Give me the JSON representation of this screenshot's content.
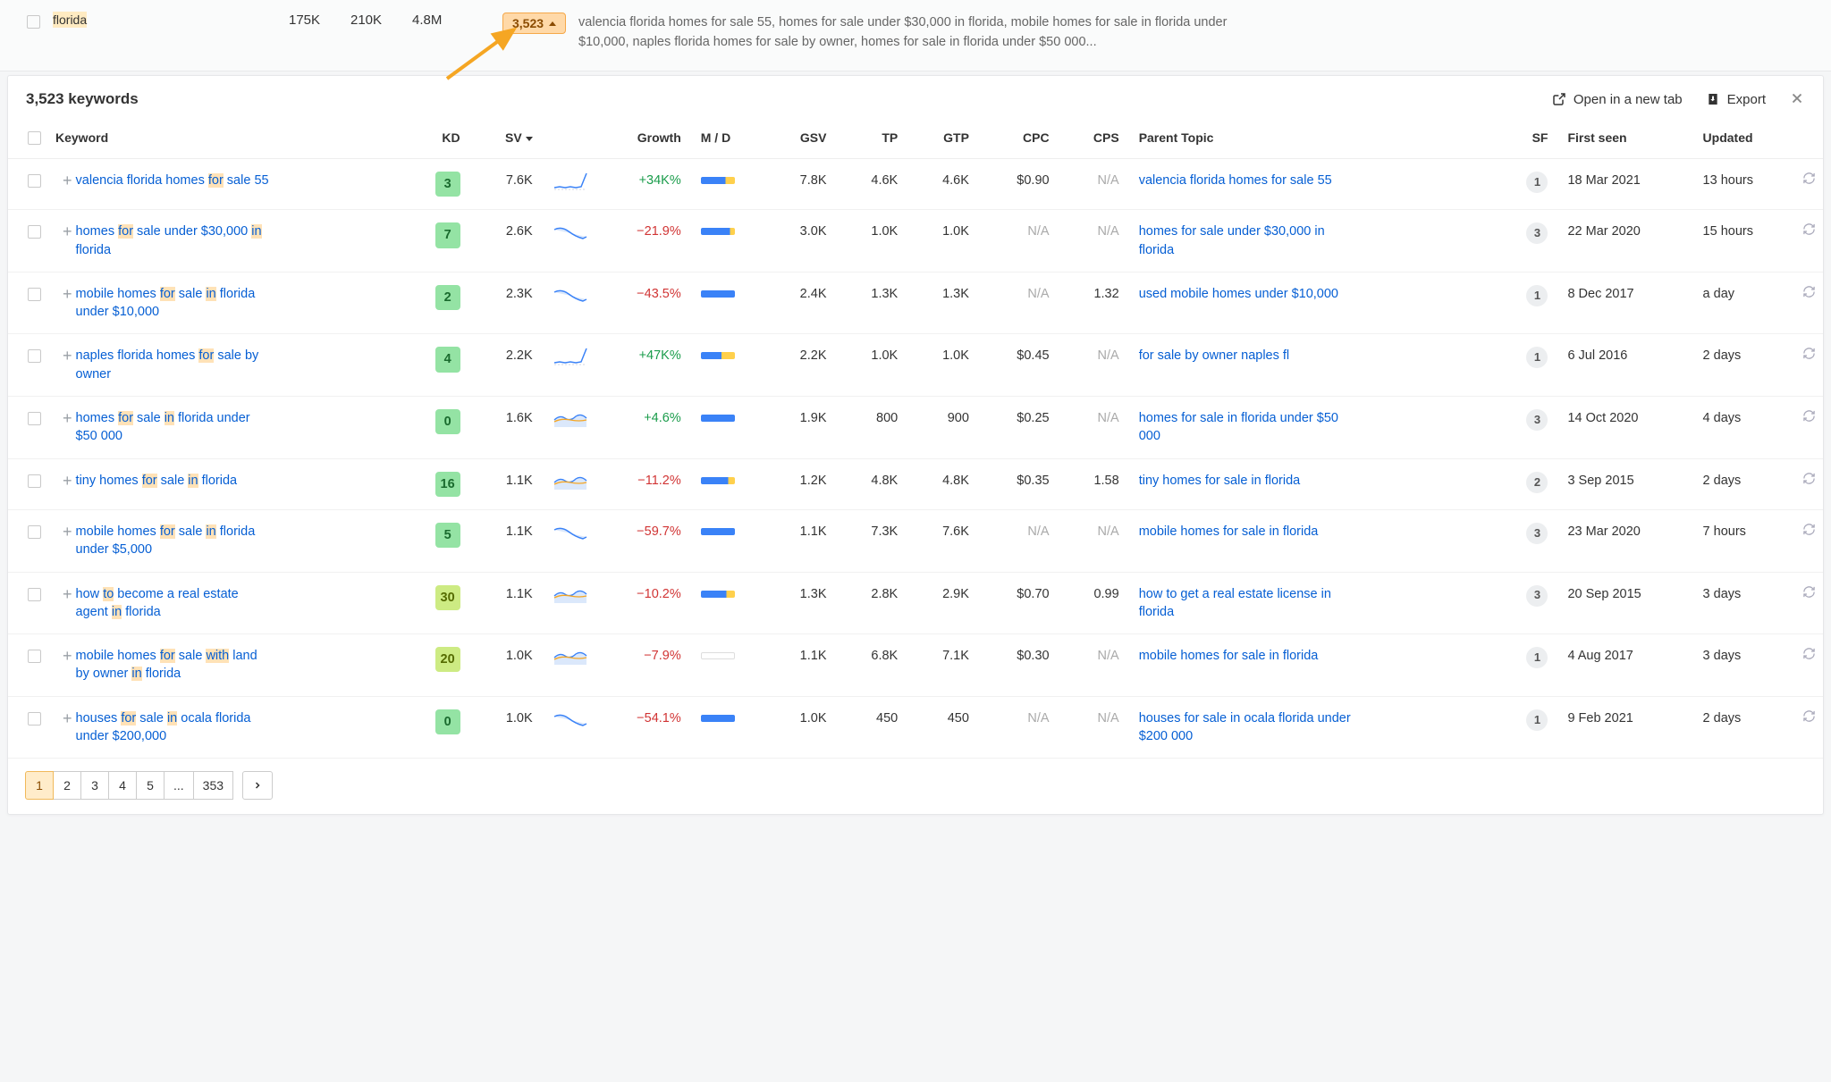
{
  "topRow": {
    "keyword_pre": "",
    "keyword_hl": "florida",
    "n1": "175K",
    "n2": "210K",
    "n3": "4.8M",
    "badge": "3,523",
    "desc": "valencia florida homes for sale 55, homes for sale under $30,000 in florida, mobile homes for sale in florida under $10,000, naples florida homes for sale by owner, homes for sale in florida under $50 000..."
  },
  "panel": {
    "title": "3,523 keywords",
    "openTab": "Open in a new tab",
    "export": "Export"
  },
  "headers": {
    "keyword": "Keyword",
    "kd": "KD",
    "sv": "SV",
    "growth": "Growth",
    "md": "M / D",
    "gsv": "GSV",
    "tp": "TP",
    "gtp": "GTP",
    "cpc": "CPC",
    "cps": "CPS",
    "parent": "Parent Topic",
    "sf": "SF",
    "first": "First seen",
    "updated": "Updated"
  },
  "pagination": {
    "pages": [
      "1",
      "2",
      "3",
      "4",
      "5",
      "...",
      "353"
    ],
    "active": 0
  },
  "rows": [
    {
      "kwParts": [
        "valencia florida homes ",
        "for",
        " sale 55"
      ],
      "kd": "3",
      "kdClass": "kd-green",
      "sv": "7.6K",
      "spark": "flat-up",
      "growth": "+34K%",
      "growthSign": "pos",
      "mdBlue": "72",
      "mdEmpty": false,
      "gsv": "7.8K",
      "tp": "4.6K",
      "gtp": "4.6K",
      "cpc": "$0.90",
      "cps": "N/A",
      "parent": "valencia florida homes for sale 55",
      "sf": "1",
      "first": "18 Mar 2021",
      "updated": "13 hours"
    },
    {
      "kwParts": [
        "homes ",
        "for",
        " sale under $30,000 ",
        "in",
        " florida"
      ],
      "kd": "7",
      "kdClass": "kd-green",
      "sv": "2.6K",
      "spark": "down",
      "growth": "−21.9%",
      "growthSign": "neg",
      "mdBlue": "85",
      "mdEmpty": false,
      "gsv": "3.0K",
      "tp": "1.0K",
      "gtp": "1.0K",
      "cpc": "N/A",
      "cps": "N/A",
      "parent": "homes for sale under $30,000 in florida",
      "sf": "3",
      "first": "22 Mar 2020",
      "updated": "15 hours"
    },
    {
      "kwParts": [
        "mobile homes ",
        "for",
        " sale ",
        "in",
        " florida under $10,000"
      ],
      "kd": "2",
      "kdClass": "kd-green",
      "sv": "2.3K",
      "spark": "down",
      "growth": "−43.5%",
      "growthSign": "neg",
      "mdBlue": "100",
      "mdEmpty": false,
      "gsv": "2.4K",
      "tp": "1.3K",
      "gtp": "1.3K",
      "cpc": "N/A",
      "cps": "1.32",
      "parent": "used mobile homes under $10,000",
      "sf": "1",
      "first": "8 Dec 2017",
      "updated": "a day"
    },
    {
      "kwParts": [
        "naples florida homes ",
        "for",
        " sale by owner"
      ],
      "kd": "4",
      "kdClass": "kd-green",
      "sv": "2.2K",
      "spark": "flat-up",
      "growth": "+47K%",
      "growthSign": "pos",
      "mdBlue": "60",
      "mdEmpty": false,
      "gsv": "2.2K",
      "tp": "1.0K",
      "gtp": "1.0K",
      "cpc": "$0.45",
      "cps": "N/A",
      "parent": "for sale by owner naples fl",
      "sf": "1",
      "first": "6 Jul 2016",
      "updated": "2 days"
    },
    {
      "kwParts": [
        "homes ",
        "for",
        " sale ",
        "in",
        " florida under $50 000"
      ],
      "kd": "0",
      "kdClass": "kd-green",
      "sv": "1.6K",
      "spark": "flat",
      "growth": "+4.6%",
      "growthSign": "pos",
      "mdBlue": "100",
      "mdEmpty": false,
      "gsv": "1.9K",
      "tp": "800",
      "gtp": "900",
      "cpc": "$0.25",
      "cps": "N/A",
      "parent": "homes for sale in florida under $50 000",
      "sf": "3",
      "first": "14 Oct 2020",
      "updated": "4 days"
    },
    {
      "kwParts": [
        "tiny homes ",
        "for",
        " sale ",
        "in",
        " florida"
      ],
      "kd": "16",
      "kdClass": "kd-green",
      "sv": "1.1K",
      "spark": "flat",
      "growth": "−11.2%",
      "growthSign": "neg",
      "mdBlue": "80",
      "mdEmpty": false,
      "gsv": "1.2K",
      "tp": "4.8K",
      "gtp": "4.8K",
      "cpc": "$0.35",
      "cps": "1.58",
      "parent": "tiny homes for sale in florida",
      "sf": "2",
      "first": "3 Sep 2015",
      "updated": "2 days"
    },
    {
      "kwParts": [
        "mobile homes ",
        "for",
        " sale ",
        "in",
        " florida under $5,000"
      ],
      "kd": "5",
      "kdClass": "kd-green",
      "sv": "1.1K",
      "spark": "down",
      "growth": "−59.7%",
      "growthSign": "neg",
      "mdBlue": "100",
      "mdEmpty": false,
      "gsv": "1.1K",
      "tp": "7.3K",
      "gtp": "7.6K",
      "cpc": "N/A",
      "cps": "N/A",
      "parent": "mobile homes for sale in florida",
      "sf": "3",
      "first": "23 Mar 2020",
      "updated": "7 hours"
    },
    {
      "kwParts": [
        "how ",
        "to",
        " become a real estate agent ",
        "in",
        " florida"
      ],
      "kd": "30",
      "kdClass": "kd-lime",
      "sv": "1.1K",
      "spark": "flat",
      "growth": "−10.2%",
      "growthSign": "neg",
      "mdBlue": "75",
      "mdEmpty": false,
      "gsv": "1.3K",
      "tp": "2.8K",
      "gtp": "2.9K",
      "cpc": "$0.70",
      "cps": "0.99",
      "parent": "how to get a real estate license in florida",
      "sf": "3",
      "first": "20 Sep 2015",
      "updated": "3 days"
    },
    {
      "kwParts": [
        "mobile homes ",
        "for",
        " sale ",
        "with",
        " land by owner ",
        "in",
        " florida"
      ],
      "kd": "20",
      "kdClass": "kd-lime",
      "sv": "1.0K",
      "spark": "flat",
      "growth": "−7.9%",
      "growthSign": "neg",
      "mdBlue": "0",
      "mdEmpty": true,
      "gsv": "1.1K",
      "tp": "6.8K",
      "gtp": "7.1K",
      "cpc": "$0.30",
      "cps": "N/A",
      "parent": "mobile homes for sale in florida",
      "sf": "1",
      "first": "4 Aug 2017",
      "updated": "3 days"
    },
    {
      "kwParts": [
        "houses ",
        "for",
        " sale ",
        "in",
        " ocala florida under $200,000"
      ],
      "kd": "0",
      "kdClass": "kd-green",
      "sv": "1.0K",
      "spark": "down",
      "growth": "−54.1%",
      "growthSign": "neg",
      "mdBlue": "100",
      "mdEmpty": false,
      "gsv": "1.0K",
      "tp": "450",
      "gtp": "450",
      "cpc": "N/A",
      "cps": "N/A",
      "parent": "houses for sale in ocala florida under $200 000",
      "sf": "1",
      "first": "9 Feb 2021",
      "updated": "2 days"
    }
  ]
}
